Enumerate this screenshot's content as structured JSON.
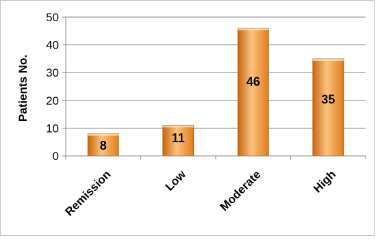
{
  "chart_data": {
    "type": "bar",
    "categories": [
      "Remission",
      "Low",
      "Moderate",
      "High"
    ],
    "values": [
      8,
      11,
      46,
      35
    ],
    "data_labels": [
      "8",
      "11",
      "46",
      "35"
    ],
    "title": "",
    "xlabel": "",
    "ylabel": "Patients No.",
    "ylim": [
      0,
      50
    ],
    "yticks": [
      0,
      10,
      20,
      30,
      40,
      50
    ],
    "ytick_labels": [
      "0",
      "10",
      "20",
      "30",
      "40",
      "50"
    ],
    "grid": true,
    "legend": "none",
    "colors": {
      "bar_light": "#fbc27f",
      "bar_mid": "#f39a3a",
      "bar_dark": "#c9660d",
      "grid": "#868686"
    }
  }
}
